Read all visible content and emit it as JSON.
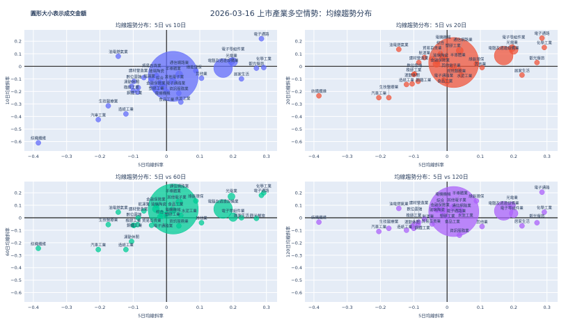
{
  "title": "2026-03-16 上市產業多空情勢：均線趨勢分布",
  "note": "圓形大小表示成交金額",
  "colors": {
    "10": "#636efa",
    "20": "#ef553b",
    "60": "#00cc96",
    "120": "#ab63fa",
    "plot_bg": "#e5ecf6",
    "grid": "#ffffff",
    "text": "#2a3f5f"
  },
  "chart_data": [
    {
      "type": "scatter",
      "key": "10",
      "title": "均線趨勢分布：5日 vs 10日",
      "xlabel": "5日均線斜率",
      "ylabel": "10日均線斜率",
      "xlim": [
        -0.427,
        0.332
      ],
      "ylim": [
        -0.675,
        0.29
      ],
      "xticks": [
        -0.4,
        -0.3,
        -0.2,
        -0.1,
        0,
        0.1,
        0.2,
        0.3
      ],
      "yticks": [
        -0.6,
        -0.5,
        -0.4,
        -0.3,
        -0.2,
        -0.1,
        0,
        0.1,
        0.2
      ],
      "grid": true,
      "legend": "none"
    },
    {
      "type": "scatter",
      "key": "20",
      "title": "均線趨勢分布：5日 vs 20日",
      "xlabel": "5日均線斜率",
      "ylabel": "20日均線斜率",
      "xlim": [
        -0.427,
        0.332
      ],
      "ylim": [
        -0.675,
        0.29
      ],
      "xticks": [
        -0.4,
        -0.3,
        -0.2,
        -0.1,
        0,
        0.1,
        0.2,
        0.3
      ],
      "yticks": [
        -0.6,
        -0.5,
        -0.4,
        -0.3,
        -0.2,
        -0.1,
        0,
        0.1,
        0.2
      ],
      "grid": true,
      "legend": "none"
    },
    {
      "type": "scatter",
      "key": "60",
      "title": "均線趨勢分布：5日 vs 60日",
      "xlabel": "5日均線斜率",
      "ylabel": "60日均線斜率",
      "xlim": [
        -0.427,
        0.332
      ],
      "ylim": [
        -0.675,
        0.29
      ],
      "xticks": [
        -0.4,
        -0.3,
        -0.2,
        -0.1,
        0,
        0.1,
        0.2,
        0.3
      ],
      "yticks": [
        -0.6,
        -0.5,
        -0.4,
        -0.3,
        -0.2,
        -0.1,
        0,
        0.1,
        0.2
      ],
      "grid": true,
      "legend": "none"
    },
    {
      "type": "scatter",
      "key": "120",
      "title": "均線趨勢分布：5日 vs 120日",
      "xlabel": "5日均線斜率",
      "ylabel": "120日均線斜率",
      "xlim": [
        -0.427,
        0.332
      ],
      "ylim": [
        -0.675,
        0.29
      ],
      "xticks": [
        -0.4,
        -0.3,
        -0.2,
        -0.1,
        0,
        0.1,
        0.2,
        0.3
      ],
      "yticks": [
        -0.6,
        -0.5,
        -0.4,
        -0.3,
        -0.2,
        -0.1,
        0,
        0.1,
        0.2
      ],
      "grid": true,
      "legend": "none"
    }
  ],
  "points": [
    {
      "name": "紡織纖維",
      "x": -0.385,
      "y10": -0.61,
      "y20": -0.235,
      "y60": -0.245,
      "y120": -0.035,
      "size": 1
    },
    {
      "name": "汽車工業",
      "x": -0.205,
      "y10": -0.425,
      "y20": -0.25,
      "y60": -0.255,
      "y120": -0.11,
      "size": 1
    },
    {
      "name": "生技醫療業",
      "x": -0.175,
      "y10": -0.315,
      "y20": -0.25,
      "y60": -0.055,
      "y120": -0.085,
      "size": 1
    },
    {
      "name": "油電燃氣業",
      "x": -0.145,
      "y10": 0.08,
      "y20": 0.135,
      "y60": 0.045,
      "y120": 0.075,
      "size": 1
    },
    {
      "name": "造紙工業",
      "x": -0.122,
      "y10": -0.38,
      "y20": -0.145,
      "y60": -0.255,
      "y120": -0.1,
      "size": 1
    },
    {
      "name": "運動休閒",
      "x": -0.105,
      "y10": -0.16,
      "y20": -0.14,
      "y60": -0.19,
      "y120": -0.07,
      "size": 1
    },
    {
      "name": "橡膠工業",
      "x": -0.1,
      "y10": -0.195,
      "y20": -0.065,
      "y60": -0.06,
      "y120": -0.085,
      "size": 1
    },
    {
      "name": "數位雲端",
      "x": -0.098,
      "y10": -0.12,
      "y20": -0.062,
      "y60": -0.062,
      "y120": -0.05,
      "size": 1
    },
    {
      "name": "鋼鐵工業",
      "x": -0.087,
      "y10": -0.205,
      "y20": -0.12,
      "y60": -0.055,
      "y120": -0.06,
      "size": 1
    },
    {
      "name": "建材營造業",
      "x": -0.085,
      "y10": -0.17,
      "y20": 0.03,
      "y60": 0.0,
      "y120": -0.035,
      "size": 1
    },
    {
      "name": "航運業",
      "x": -0.068,
      "y10": -0.09,
      "y20": 0.07,
      "y60": 0.055,
      "y120": -0.01,
      "size": 1
    },
    {
      "name": "貿易百貨業",
      "x": -0.045,
      "y10": -0.1,
      "y20": 0.06,
      "y60": -0.06,
      "y120": -0.05,
      "size": 1
    },
    {
      "name": "玻璃陶瓷",
      "x": -0.03,
      "y10": -0.075,
      "y20": 0.035,
      "y60": 0.1,
      "y120": 0.06,
      "size": 1
    },
    {
      "name": "金融保險業",
      "x": -0.032,
      "y10": -0.18,
      "y20": 0.02,
      "y60": 0.07,
      "y120": 0.075,
      "size": 2
    },
    {
      "name": "塑膠工業",
      "x": -0.015,
      "y10": -0.14,
      "y20": 0.08,
      "y60": 0.04,
      "y120": 0.05,
      "size": 1
    },
    {
      "name": "電機機械",
      "x": -0.012,
      "y10": -0.16,
      "y20": 0.07,
      "y60": 0.02,
      "y120": 0.06,
      "size": 2
    },
    {
      "name": "綜合",
      "x": -0.02,
      "y10": -0.13,
      "y20": 0.1,
      "y60": 0.01,
      "y120": 0.07,
      "size": 1
    },
    {
      "name": "食品工業",
      "x": 0.0,
      "y10": -0.2,
      "y20": -0.125,
      "y60": 0.03,
      "y120": 0.005,
      "size": 1
    },
    {
      "name": "電子通路業",
      "x": -0.01,
      "y10": -0.17,
      "y20": -0.11,
      "y60": 0.015,
      "y120": 0.02,
      "size": 1
    },
    {
      "name": "半導體業",
      "x": 0.02,
      "y10": -0.08,
      "y20": 0.03,
      "y60": 0.07,
      "y120": 0.05,
      "size": 100
    },
    {
      "name": "其他電子業",
      "x": 0.018,
      "y10": -0.12,
      "y20": -0.01,
      "y60": 0.06,
      "y120": 0.08,
      "size": 2
    },
    {
      "name": "通信網路業",
      "x": 0.038,
      "y10": -0.065,
      "y20": 0.125,
      "y60": 0.125,
      "y120": 0.06,
      "size": 2
    },
    {
      "name": "資訊服務業",
      "x": 0.037,
      "y10": -0.215,
      "y20": -0.03,
      "y60": -0.065,
      "y120": -0.14,
      "size": 1
    },
    {
      "name": "水泥工業",
      "x": 0.043,
      "y10": -0.285,
      "y20": -0.07,
      "y60": 0.02,
      "y120": 0.04,
      "size": 1
    },
    {
      "name": "綠能環保",
      "x": 0.088,
      "y10": -0.035,
      "y20": 0.02,
      "y60": 0.135,
      "y120": 0.135,
      "size": 1
    },
    {
      "name": "其他業",
      "x": 0.105,
      "y10": -0.095,
      "y20": -0.01,
      "y60": -0.04,
      "y120": -0.07,
      "size": 1
    },
    {
      "name": "電腦及週邊設備業",
      "x": 0.17,
      "y10": -0.015,
      "y20": 0.085,
      "y60": 0.07,
      "y120": 0.055,
      "size": 14
    },
    {
      "name": "光電業",
      "x": 0.195,
      "y10": 0.04,
      "y20": 0.145,
      "y60": 0.17,
      "y120": 0.1,
      "size": 2
    },
    {
      "name": "電子零組件業",
      "x": 0.2,
      "y10": 0.035,
      "y20": 0.13,
      "y60": 0.005,
      "y120": 0.035,
      "size": 3
    },
    {
      "name": "居家生活",
      "x": 0.225,
      "y10": -0.1,
      "y20": -0.07,
      "y60": 0.0,
      "y120": -0.065,
      "size": 1
    },
    {
      "name": "觀光餐旅",
      "x": 0.27,
      "y10": -0.015,
      "y20": 0.03,
      "y60": -0.005,
      "y120": -0.04,
      "size": 1
    },
    {
      "name": "電子通路",
      "x": 0.285,
      "y10": 0.22,
      "y20": 0.225,
      "y60": 0.18,
      "y120": 0.205,
      "size": 1
    },
    {
      "name": "化學工業",
      "x": 0.292,
      "y10": -0.01,
      "y20": 0.15,
      "y60": 0.2,
      "y120": 0.045,
      "size": 1
    }
  ]
}
